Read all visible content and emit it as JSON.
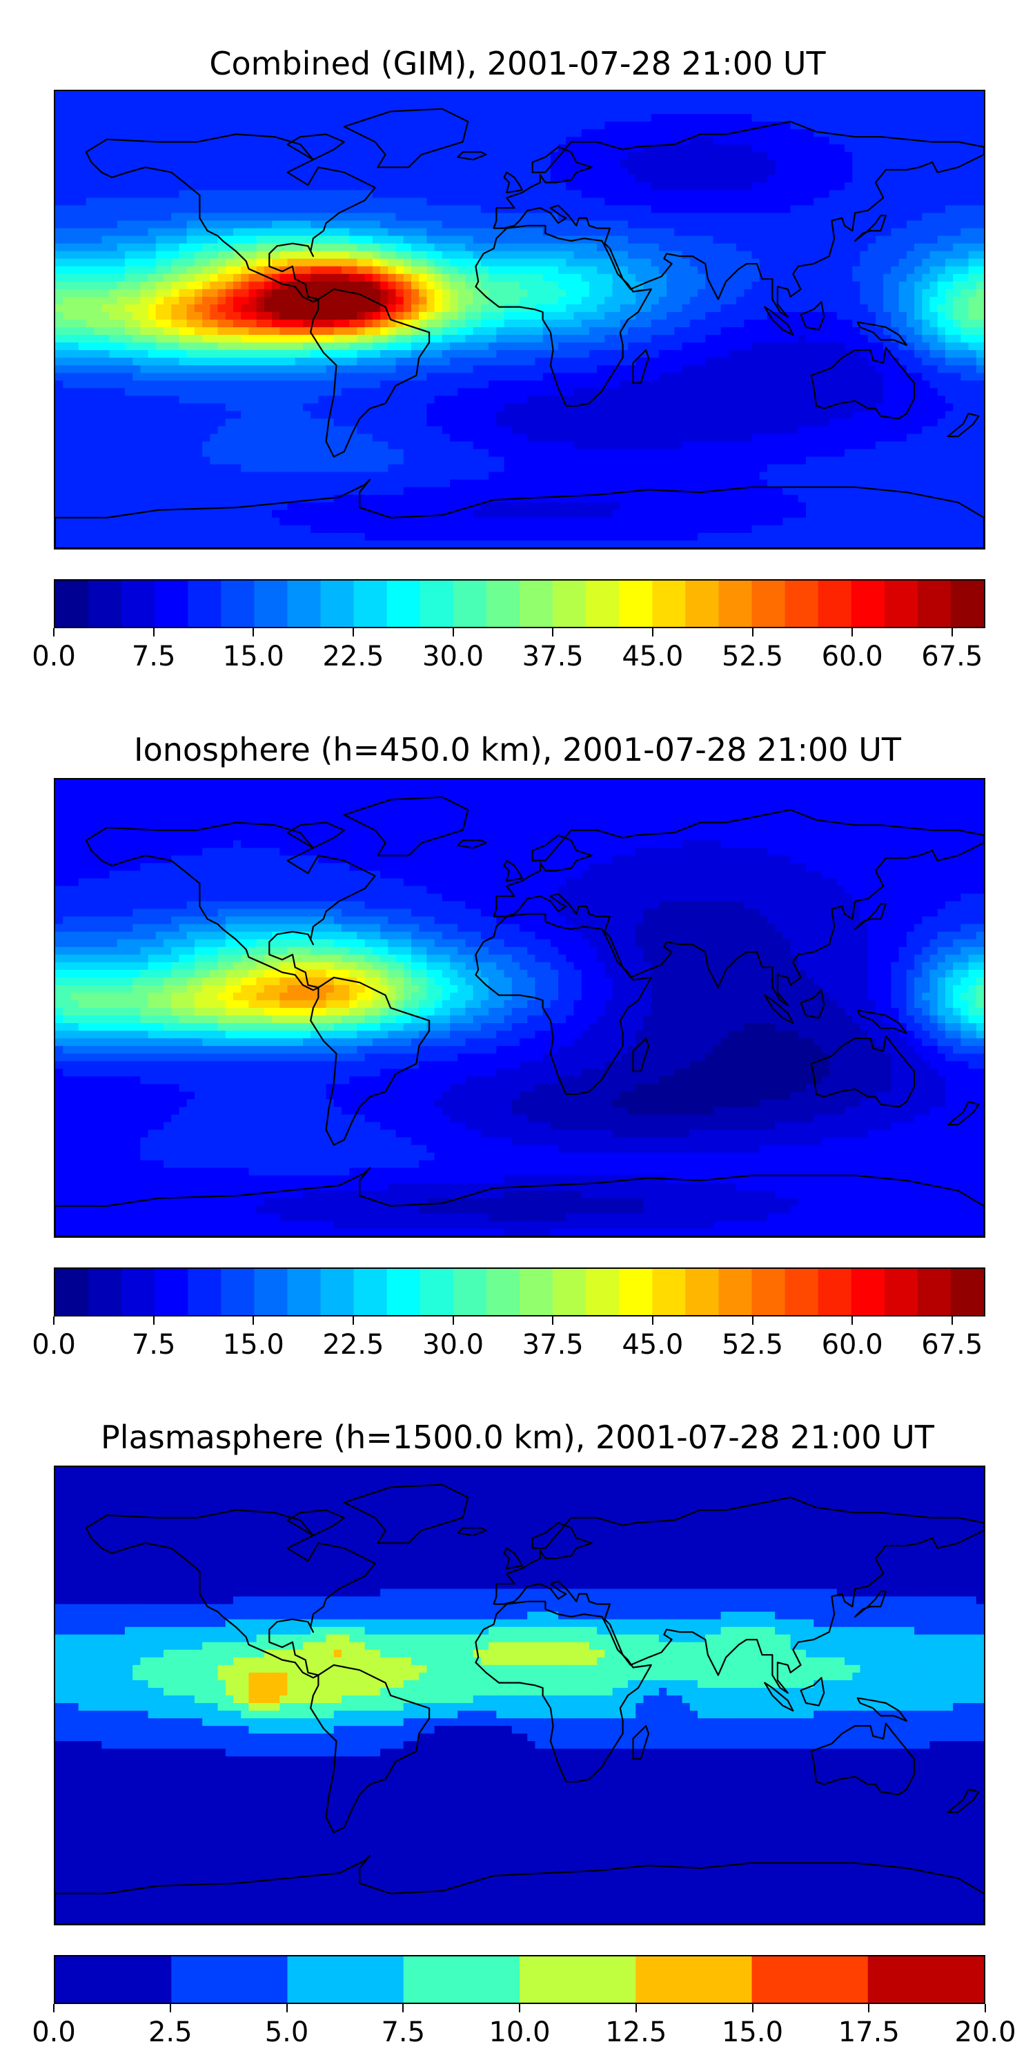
{
  "chart_data": [
    {
      "type": "heatmap",
      "title": "Combined (GIM), 2001-07-28 21:00 UT",
      "map": "world-equirectangular",
      "xlim": [
        -180,
        180
      ],
      "ylim": [
        -90,
        90
      ],
      "colormap": "jet",
      "colorbar": {
        "min": 0.0,
        "max": 70.0,
        "step": 2.5,
        "orientation": "horizontal",
        "tick_labels": [
          "0.0",
          "7.5",
          "15.0",
          "22.5",
          "30.0",
          "37.5",
          "45.0",
          "52.5",
          "60.0",
          "67.5"
        ],
        "tick_values": [
          0,
          7.5,
          15,
          22.5,
          30,
          37.5,
          45,
          52.5,
          60,
          67.5
        ]
      },
      "background_value": 12,
      "features": [
        {
          "lon": -68,
          "lat": 8,
          "value": 50,
          "sx": 26,
          "sy": 11
        },
        {
          "lon": -120,
          "lat": 2,
          "value": 36,
          "sx": 35,
          "sy": 12
        },
        {
          "lon": -95,
          "lat": 25,
          "value": 15,
          "sx": 40,
          "sy": 10
        },
        {
          "lon": -30,
          "lat": 5,
          "value": 8,
          "sx": 30,
          "sy": 12
        },
        {
          "lon": 5,
          "lat": 12,
          "value": 10,
          "sx": 25,
          "sy": 12
        },
        {
          "lon": 40,
          "lat": 12,
          "value": 6,
          "sx": 30,
          "sy": 15
        },
        {
          "lon": 70,
          "lat": 60,
          "value": -6,
          "sx": 40,
          "sy": 14
        },
        {
          "lon": 110,
          "lat": -20,
          "value": -6,
          "sx": 50,
          "sy": 18
        },
        {
          "lon": 20,
          "lat": -40,
          "value": -6,
          "sx": 60,
          "sy": 12
        },
        {
          "lon": 175,
          "lat": 5,
          "value": 16,
          "sx": 20,
          "sy": 15
        },
        {
          "lon": -60,
          "lat": -50,
          "value": 3,
          "sx": 40,
          "sy": 15
        },
        {
          "lon": 0,
          "lat": -75,
          "value": -5,
          "sx": 80,
          "sy": 10
        }
      ]
    },
    {
      "type": "heatmap",
      "title": "Ionosphere  (h=450.0 km), 2001-07-28 21:00 UT",
      "map": "world-equirectangular",
      "xlim": [
        -180,
        180
      ],
      "ylim": [
        -90,
        90
      ],
      "colormap": "jet",
      "colorbar": {
        "min": 0.0,
        "max": 70.0,
        "step": 2.5,
        "orientation": "horizontal",
        "tick_labels": [
          "0.0",
          "7.5",
          "15.0",
          "22.5",
          "30.0",
          "37.5",
          "45.0",
          "52.5",
          "60.0",
          "67.5"
        ],
        "tick_values": [
          0,
          7.5,
          15,
          22.5,
          30,
          37.5,
          45,
          52.5,
          60,
          67.5
        ]
      },
      "background_value": 10,
      "features": [
        {
          "lon": -75,
          "lat": 6,
          "value": 30,
          "sx": 28,
          "sy": 11
        },
        {
          "lon": -130,
          "lat": 2,
          "value": 24,
          "sx": 35,
          "sy": 11
        },
        {
          "lon": -95,
          "lat": 25,
          "value": 12,
          "sx": 40,
          "sy": 10
        },
        {
          "lon": -30,
          "lat": 5,
          "value": 7,
          "sx": 30,
          "sy": 12
        },
        {
          "lon": 0,
          "lat": 12,
          "value": 4,
          "sx": 25,
          "sy": 12
        },
        {
          "lon": 70,
          "lat": 25,
          "value": -6,
          "sx": 50,
          "sy": 30
        },
        {
          "lon": 110,
          "lat": -20,
          "value": -6,
          "sx": 50,
          "sy": 18
        },
        {
          "lon": 30,
          "lat": -40,
          "value": -6,
          "sx": 60,
          "sy": 12
        },
        {
          "lon": 178,
          "lat": 5,
          "value": 14,
          "sx": 18,
          "sy": 15
        },
        {
          "lon": -60,
          "lat": -50,
          "value": 2,
          "sx": 40,
          "sy": 15
        },
        {
          "lon": 0,
          "lat": -78,
          "value": -6,
          "sx": 80,
          "sy": 8
        }
      ]
    },
    {
      "type": "heatmap",
      "title": "Plasmasphere (h=1500.0 km), 2001-07-28 21:00 UT",
      "map": "world-equirectangular",
      "xlim": [
        -180,
        180
      ],
      "ylim": [
        -90,
        90
      ],
      "colormap": "jet",
      "colorbar": {
        "min": 0.0,
        "max": 20.0,
        "step": 2.5,
        "orientation": "horizontal",
        "tick_labels": [
          "0.0",
          "2.5",
          "5.0",
          "7.5",
          "10.0",
          "12.5",
          "15.0",
          "17.5",
          "20.0"
        ],
        "tick_values": [
          0,
          2.5,
          5,
          7.5,
          10,
          12.5,
          15,
          17.5,
          20
        ]
      },
      "background_value": 1.5,
      "features": [
        {
          "lon": 0,
          "lat": 10,
          "value": 7.5,
          "sx": 200,
          "sy": 16
        },
        {
          "lon": -85,
          "lat": 5,
          "value": 4,
          "sx": 30,
          "sy": 12
        },
        {
          "lon": -100,
          "lat": 0,
          "value": 4,
          "sx": 6,
          "sy": 6
        },
        {
          "lon": -70,
          "lat": 20,
          "value": 3,
          "sx": 8,
          "sy": 5
        },
        {
          "lon": 10,
          "lat": 20,
          "value": 3,
          "sx": 25,
          "sy": 6
        },
        {
          "lon": 90,
          "lat": 25,
          "value": 2.5,
          "sx": 12,
          "sy": 5
        },
        {
          "lon": 55,
          "lat": 0,
          "value": -3,
          "sx": 10,
          "sy": 5
        },
        {
          "lon": -20,
          "lat": -15,
          "value": -3,
          "sx": 15,
          "sy": 5
        },
        {
          "lon": -150,
          "lat": -40,
          "value": -3,
          "sx": 30,
          "sy": 5
        },
        {
          "lon": -120,
          "lat": 60,
          "value": -2,
          "sx": 40,
          "sy": 14
        }
      ]
    }
  ]
}
